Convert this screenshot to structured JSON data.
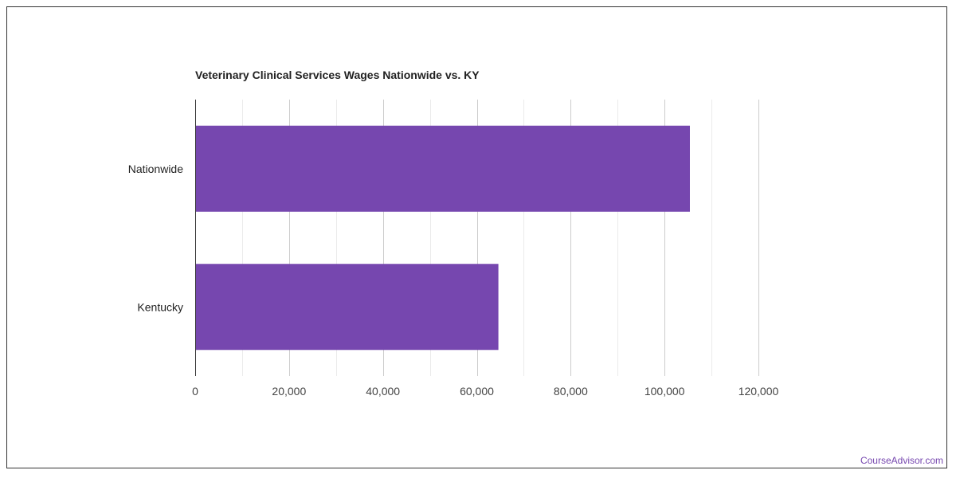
{
  "chart_data": {
    "type": "bar",
    "orientation": "horizontal",
    "title": "Veterinary Clinical Services Wages Nationwide vs. KY",
    "xlabel": "",
    "ylabel": "",
    "categories": [
      "Nationwide",
      "Kentucky"
    ],
    "values": [
      105400,
      64600
    ],
    "xlim": [
      0,
      120000
    ],
    "x_ticks": [
      0,
      20000,
      40000,
      60000,
      80000,
      100000,
      120000
    ],
    "x_tick_labels": [
      "0",
      "20,000",
      "40,000",
      "60,000",
      "80,000",
      "100,000",
      "120,000"
    ],
    "grid": "vertical",
    "bar_color": "#7647AF"
  },
  "footer": {
    "source": "CourseAdvisor.com"
  }
}
